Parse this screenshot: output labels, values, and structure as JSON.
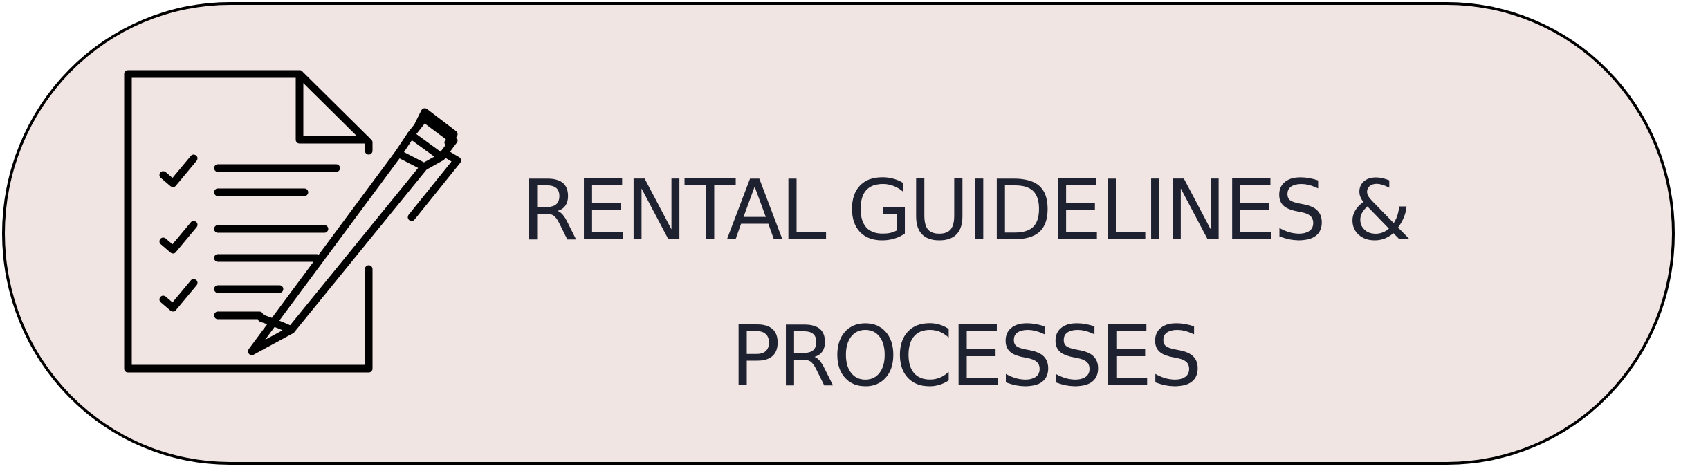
{
  "button": {
    "label": "RENTAL GUIDELINES &\nPROCESSES",
    "background": "#f1e5e3",
    "border_color": "#000000",
    "text_color": "#1e2130"
  },
  "icon": {
    "name": "checklist-document-with-pen-icon"
  }
}
